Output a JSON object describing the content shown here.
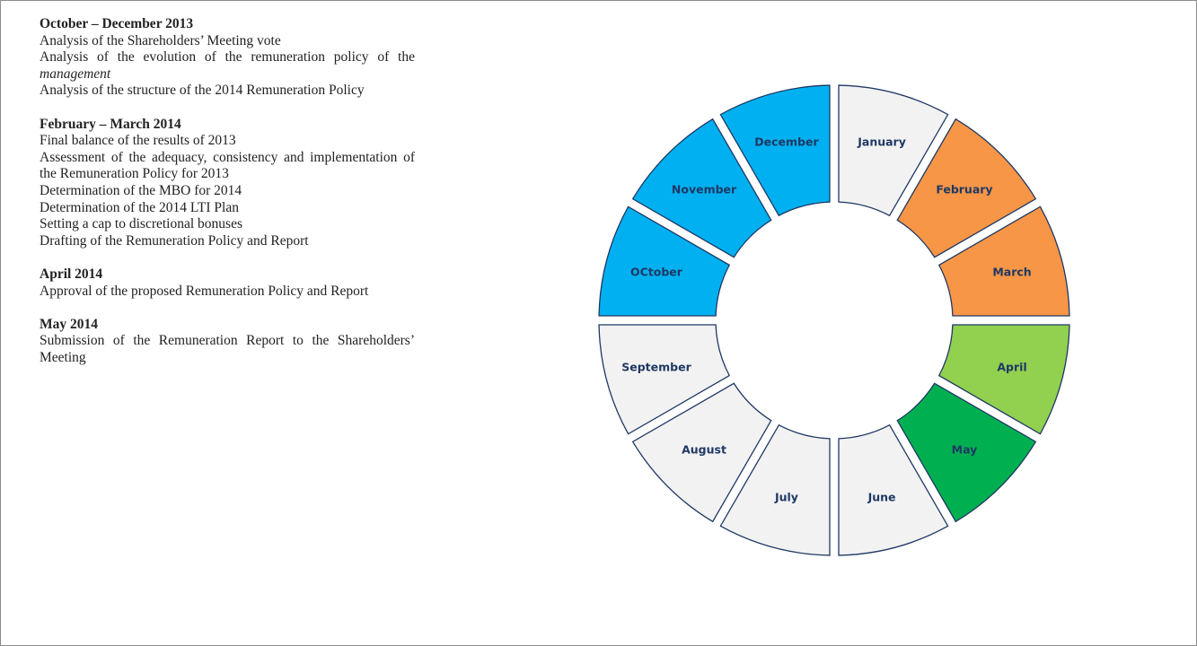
{
  "sections": [
    {
      "heading": "October – December 2013",
      "items": [
        {
          "text": "Analysis of the Shareholders’ Meeting vote"
        },
        {
          "text": "Analysis of the evolution of the remuneration policy of the",
          "em": "management"
        },
        {
          "text": "Analysis of the structure of the 2014 Remuneration Policy"
        }
      ]
    },
    {
      "heading": "February – March 2014",
      "items": [
        {
          "text": "Final balance of the results of 2013"
        },
        {
          "text": "Assessment of the adequacy, consistency and implementation of the Remuneration Policy for 2013"
        },
        {
          "text": "Determination of the MBO for 2014"
        },
        {
          "text": "Determination of the 2014 LTI Plan"
        },
        {
          "text": "Setting a cap to discretional bonuses"
        },
        {
          "text": "Drafting of the Remuneration Policy and Report"
        }
      ]
    },
    {
      "heading": "April 2014",
      "items": [
        {
          "text": "Approval of the proposed Remuneration Policy and Report"
        }
      ]
    },
    {
      "heading": "May 2014",
      "items": [
        {
          "text": "Submission of the Remuneration Report to the Shareholders’ Meeting"
        }
      ]
    }
  ],
  "months": [
    {
      "label": "January",
      "color": "#f2f2f2"
    },
    {
      "label": "February",
      "color": "#f79646"
    },
    {
      "label": "March",
      "color": "#f79646"
    },
    {
      "label": "April",
      "color": "#92d050"
    },
    {
      "label": "May",
      "color": "#00b050"
    },
    {
      "label": "June",
      "color": "#f2f2f2"
    },
    {
      "label": "July",
      "color": "#f2f2f2"
    },
    {
      "label": "August",
      "color": "#f2f2f2"
    },
    {
      "label": "September",
      "color": "#f2f2f2"
    },
    {
      "label": "OCtober",
      "color": "#00b0f0"
    },
    {
      "label": "November",
      "color": "#00b0f0"
    },
    {
      "label": "December",
      "color": "#00b0f0"
    }
  ]
}
